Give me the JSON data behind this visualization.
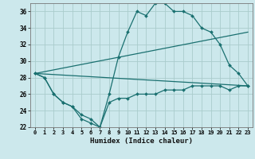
{
  "xlabel": "Humidex (Indice chaleur)",
  "bg_color": "#cce8ec",
  "grid_color": "#aacccc",
  "line_color": "#1a7070",
  "xlim": [
    -0.5,
    23.5
  ],
  "ylim": [
    22,
    37
  ],
  "xticks": [
    0,
    1,
    2,
    3,
    4,
    5,
    6,
    7,
    8,
    9,
    10,
    11,
    12,
    13,
    14,
    15,
    16,
    17,
    18,
    19,
    20,
    21,
    22,
    23
  ],
  "yticks": [
    22,
    24,
    26,
    28,
    30,
    32,
    34,
    36
  ],
  "lines": [
    {
      "x": [
        0,
        1,
        2,
        3,
        4,
        5,
        6,
        7,
        8,
        9,
        10,
        11,
        12,
        13,
        14,
        15,
        16,
        17,
        18,
        19,
        20,
        21,
        22,
        23
      ],
      "y": [
        28.5,
        28,
        26,
        25,
        24.5,
        23,
        22.5,
        22,
        26,
        30.5,
        33.5,
        36,
        35.5,
        37,
        37,
        36,
        36,
        35.5,
        34,
        33.5,
        32,
        29.5,
        28.5,
        27
      ]
    },
    {
      "x": [
        0,
        23
      ],
      "y": [
        28.5,
        33.5
      ]
    },
    {
      "x": [
        0,
        23
      ],
      "y": [
        28.5,
        27
      ]
    },
    {
      "x": [
        0,
        1,
        2,
        3,
        4,
        5,
        6,
        7,
        8,
        9,
        10,
        11,
        12,
        13,
        14,
        15,
        16,
        17,
        18,
        19,
        20,
        21,
        22,
        23
      ],
      "y": [
        28.5,
        28,
        26,
        25,
        24.5,
        23.5,
        23,
        22,
        25,
        25.5,
        25.5,
        26,
        26,
        26,
        26.5,
        26.5,
        26.5,
        27,
        27,
        27,
        27,
        26.5,
        27,
        27
      ]
    }
  ]
}
